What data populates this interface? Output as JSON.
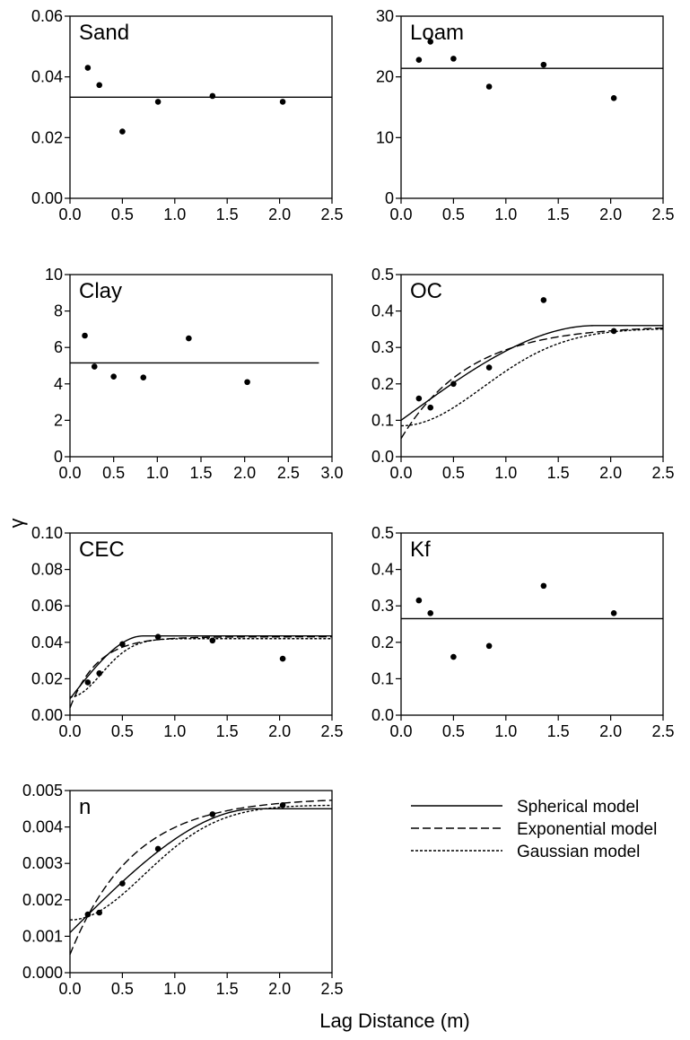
{
  "figure": {
    "ylabel": "γ",
    "xlabel": "Lag Distance (m)"
  },
  "legend": {
    "items": [
      {
        "label": "Spherical model",
        "dash": "solid"
      },
      {
        "label": "Exponential model",
        "dash": "dashed"
      },
      {
        "label": "Gaussian model",
        "dash": "dotted"
      }
    ]
  },
  "chart_data": [
    {
      "type": "scatter",
      "title": "Sand",
      "xlim": [
        0,
        2.5
      ],
      "ylim": [
        0,
        0.06
      ],
      "xticks": [
        "0.0",
        "0.5",
        "1.0",
        "1.5",
        "2.0",
        "2.5"
      ],
      "yticks": [
        "0.00",
        "0.02",
        "0.04",
        "0.06"
      ],
      "points": {
        "x": [
          0.17,
          0.28,
          0.5,
          0.84,
          1.36,
          2.03
        ],
        "y": [
          0.043,
          0.0373,
          0.022,
          0.0318,
          0.0337,
          0.0318
        ]
      },
      "models": [
        {
          "name": "Spherical model",
          "kind": "nugget",
          "nugget": 0.0333
        }
      ]
    },
    {
      "type": "scatter",
      "title": "Loam",
      "xlim": [
        0,
        2.5
      ],
      "ylim": [
        0,
        30
      ],
      "xticks": [
        "0.0",
        "0.5",
        "1.0",
        "1.5",
        "2.0",
        "2.5"
      ],
      "yticks": [
        "0",
        "10",
        "20",
        "30"
      ],
      "points": {
        "x": [
          0.17,
          0.28,
          0.5,
          0.84,
          1.36,
          2.03
        ],
        "y": [
          22.8,
          25.8,
          23.0,
          18.4,
          22.0,
          16.5
        ]
      },
      "models": [
        {
          "name": "Spherical model",
          "kind": "nugget",
          "nugget": 21.4
        }
      ]
    },
    {
      "type": "scatter",
      "title": "Clay",
      "xlim": [
        0,
        3.0
      ],
      "ylim": [
        0,
        10
      ],
      "xticks": [
        "0.0",
        "0.5",
        "1.0",
        "1.5",
        "2.0",
        "2.5",
        "3.0"
      ],
      "yticks": [
        "0",
        "2",
        "4",
        "6",
        "8",
        "10"
      ],
      "points": {
        "x": [
          0.17,
          0.28,
          0.5,
          0.84,
          1.36,
          2.03
        ],
        "y": [
          6.65,
          4.95,
          4.4,
          4.35,
          6.5,
          4.1
        ]
      },
      "models": [
        {
          "name": "Spherical model",
          "kind": "nugget",
          "nugget": 5.15,
          "xmax": 2.85
        }
      ]
    },
    {
      "type": "scatter",
      "title": "OC",
      "xlim": [
        0,
        2.5
      ],
      "ylim": [
        0,
        0.5
      ],
      "xticks": [
        "0.0",
        "0.5",
        "1.0",
        "1.5",
        "2.0",
        "2.5"
      ],
      "yticks": [
        "0.0",
        "0.1",
        "0.2",
        "0.3",
        "0.4",
        "0.5"
      ],
      "points": {
        "x": [
          0.17,
          0.28,
          0.5,
          0.84,
          1.36,
          2.03
        ],
        "y": [
          0.16,
          0.135,
          0.2,
          0.245,
          0.43,
          0.345
        ]
      },
      "models": [
        {
          "name": "Spherical model",
          "kind": "spherical",
          "nugget": 0.1,
          "sill": 0.36,
          "range": 1.85
        },
        {
          "name": "Exponential model",
          "kind": "exponential",
          "nugget": 0.05,
          "sill": 0.36,
          "range": 0.65
        },
        {
          "name": "Gaussian model",
          "kind": "gaussian",
          "nugget": 0.085,
          "sill": 0.352,
          "range": 1.1
        }
      ]
    },
    {
      "type": "scatter",
      "title": "CEC",
      "xlim": [
        0,
        2.5
      ],
      "ylim": [
        0,
        0.1
      ],
      "xticks": [
        "0.0",
        "0.5",
        "1.0",
        "1.5",
        "2.0",
        "2.5"
      ],
      "yticks": [
        "0.00",
        "0.02",
        "0.04",
        "0.06",
        "0.08",
        "0.10"
      ],
      "points": {
        "x": [
          0.17,
          0.28,
          0.5,
          0.84,
          1.36,
          2.03
        ],
        "y": [
          0.018,
          0.023,
          0.039,
          0.043,
          0.041,
          0.031
        ]
      },
      "models": [
        {
          "name": "Spherical model",
          "kind": "spherical",
          "nugget": 0.009,
          "sill": 0.0435,
          "range": 0.7
        },
        {
          "name": "Exponential model",
          "kind": "exponential",
          "nugget": 0.004,
          "sill": 0.043,
          "range": 0.26
        },
        {
          "name": "Gaussian model",
          "kind": "gaussian",
          "nugget": 0.01,
          "sill": 0.042,
          "range": 0.42
        }
      ]
    },
    {
      "type": "scatter",
      "title": "Kf",
      "xlim": [
        0,
        2.5
      ],
      "ylim": [
        0,
        0.5
      ],
      "xticks": [
        "0.0",
        "0.5",
        "1.0",
        "1.5",
        "2.0",
        "2.5"
      ],
      "yticks": [
        "0.0",
        "0.1",
        "0.2",
        "0.3",
        "0.4",
        "0.5"
      ],
      "points": {
        "x": [
          0.17,
          0.28,
          0.5,
          0.84,
          1.36,
          2.03
        ],
        "y": [
          0.315,
          0.28,
          0.16,
          0.19,
          0.355,
          0.28
        ]
      },
      "models": [
        {
          "name": "Spherical model",
          "kind": "nugget",
          "nugget": 0.265
        }
      ]
    },
    {
      "type": "scatter",
      "title": "n",
      "xlim": [
        0,
        2.5
      ],
      "ylim": [
        0,
        0.005
      ],
      "xticks": [
        "0.0",
        "0.5",
        "1.0",
        "1.5",
        "2.0",
        "2.5"
      ],
      "yticks": [
        "0.000",
        "0.001",
        "0.002",
        "0.003",
        "0.004",
        "0.005"
      ],
      "points": {
        "x": [
          0.17,
          0.28,
          0.5,
          0.84,
          1.36,
          2.03
        ],
        "y": [
          0.0016,
          0.00165,
          0.00245,
          0.0034,
          0.00435,
          0.0046
        ]
      },
      "models": [
        {
          "name": "Spherical model",
          "kind": "spherical",
          "nugget": 0.0011,
          "sill": 0.0045,
          "range": 1.78
        },
        {
          "name": "Exponential model",
          "kind": "exponential",
          "nugget": 0.0005,
          "sill": 0.0048,
          "range": 0.6
        },
        {
          "name": "Gaussian model",
          "kind": "gaussian",
          "nugget": 0.00145,
          "sill": 0.0046,
          "range": 1.0
        }
      ]
    }
  ]
}
